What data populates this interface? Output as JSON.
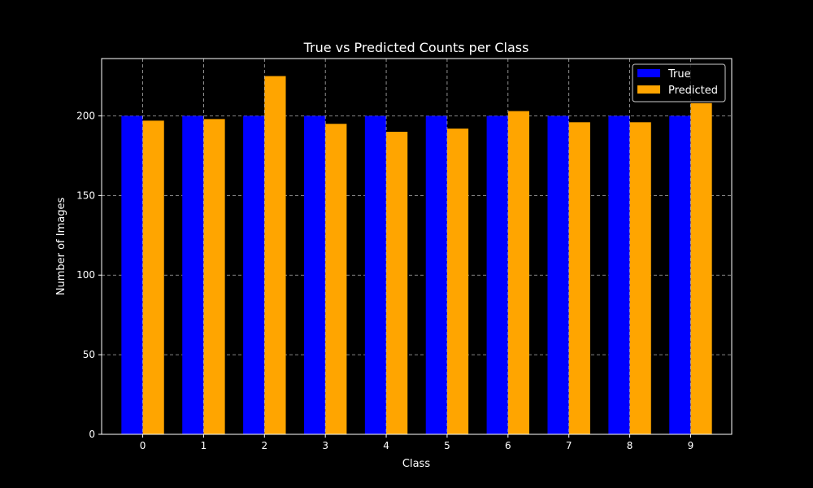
{
  "chart_data": {
    "type": "bar",
    "title": "True vs Predicted Counts per Class",
    "xlabel": "Class",
    "ylabel": "Number of Images",
    "categories": [
      "0",
      "1",
      "2",
      "3",
      "4",
      "5",
      "6",
      "7",
      "8",
      "9"
    ],
    "series": [
      {
        "name": "True",
        "color": "#0000ff",
        "values": [
          200,
          200,
          200,
          200,
          200,
          200,
          200,
          200,
          200,
          200
        ]
      },
      {
        "name": "Predicted",
        "color": "#ffa500",
        "values": [
          197,
          198,
          225,
          195,
          190,
          192,
          203,
          196,
          196,
          208
        ]
      }
    ],
    "ylim": [
      0,
      236
    ],
    "yticks": [
      0,
      50,
      100,
      150,
      200
    ],
    "grid": true,
    "legend_position": "top-right",
    "background_color": "#000000",
    "foreground_color": "#ffffff"
  }
}
